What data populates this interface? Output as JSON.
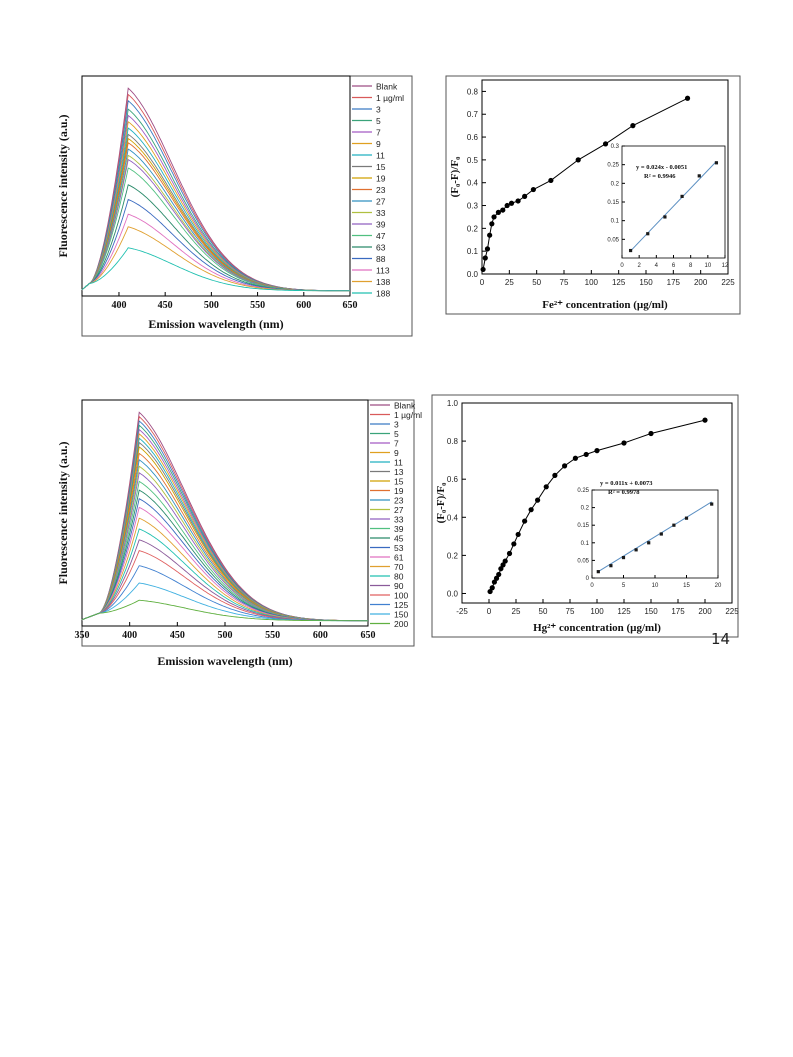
{
  "page_number": "14",
  "colors": {
    "axis": "#000000",
    "frame": "#555555",
    "fit": "#5b8fc2"
  },
  "chart_data": [
    {
      "type": "line",
      "title": "",
      "xlabel": "Emission wavelength (nm)",
      "ylabel": "Fluorescence intensity (a.u.)",
      "xlim": [
        360,
        650
      ],
      "x_ticks": [
        "400",
        "450",
        "500",
        "550",
        "600",
        "650"
      ],
      "legend_position": "right",
      "peak_x": 410,
      "series": [
        {
          "name": "Blank",
          "color": "#9e4d85",
          "peak": 0.98
        },
        {
          "name": "1 µg/ml",
          "color": "#d95a5a",
          "peak": 0.95
        },
        {
          "name": "3",
          "color": "#3a7ac4",
          "peak": 0.92
        },
        {
          "name": "5",
          "color": "#3aa37a",
          "peak": 0.88
        },
        {
          "name": "7",
          "color": "#a35ac4",
          "peak": 0.85
        },
        {
          "name": "9",
          "color": "#e0a020",
          "peak": 0.82
        },
        {
          "name": "11",
          "color": "#20b0c0",
          "peak": 0.79
        },
        {
          "name": "15",
          "color": "#7a7a7a",
          "peak": 0.76
        },
        {
          "name": "19",
          "color": "#d0a000",
          "peak": 0.74
        },
        {
          "name": "23",
          "color": "#e07030",
          "peak": 0.72
        },
        {
          "name": "27",
          "color": "#3090c0",
          "peak": 0.69
        },
        {
          "name": "33",
          "color": "#b0c040",
          "peak": 0.66
        },
        {
          "name": "39",
          "color": "#9060c0",
          "peak": 0.64
        },
        {
          "name": "47",
          "color": "#50c080",
          "peak": 0.6
        },
        {
          "name": "63",
          "color": "#2a8a6a",
          "peak": 0.52
        },
        {
          "name": "88",
          "color": "#3a6ac0",
          "peak": 0.45
        },
        {
          "name": "113",
          "color": "#e070c0",
          "peak": 0.38
        },
        {
          "name": "138",
          "color": "#e0a030",
          "peak": 0.32
        },
        {
          "name": "188",
          "color": "#20c0b0",
          "peak": 0.22
        }
      ]
    },
    {
      "type": "scatter",
      "title": "",
      "xlabel": "Fe²⁺ concentration (µg/ml)",
      "ylabel": "(F₀-F)/F₀",
      "xlim": [
        0,
        225
      ],
      "ylim": [
        0,
        0.85
      ],
      "x_ticks": [
        "0",
        "25",
        "50",
        "75",
        "100",
        "125",
        "150",
        "175",
        "200",
        "225"
      ],
      "y_ticks": [
        "0.0",
        "0.1",
        "0.2",
        "0.3",
        "0.4",
        "0.5",
        "0.6",
        "0.7",
        "0.8"
      ],
      "x": [
        1,
        3,
        5,
        7,
        9,
        11,
        15,
        19,
        23,
        27,
        33,
        39,
        47,
        63,
        88,
        113,
        138,
        188
      ],
      "y": [
        0.02,
        0.07,
        0.11,
        0.17,
        0.22,
        0.25,
        0.27,
        0.28,
        0.3,
        0.31,
        0.32,
        0.34,
        0.37,
        0.41,
        0.5,
        0.57,
        0.65,
        0.77
      ],
      "inset": {
        "x": [
          1,
          3,
          5,
          7,
          9,
          11
        ],
        "y": [
          0.02,
          0.065,
          0.11,
          0.165,
          0.22,
          0.255
        ],
        "xlim": [
          0,
          12
        ],
        "ylim": [
          0,
          0.3
        ],
        "x_ticks": [
          "0",
          "2",
          "4",
          "6",
          "8",
          "10",
          "12"
        ],
        "y_ticks": [
          "0.05",
          "0.1",
          "0.15",
          "0.2",
          "0.25",
          "0.3"
        ],
        "equation": "y = 0.024x - 0.0051",
        "r2": "R² = 0.9946",
        "fit": {
          "slope": 0.024,
          "intercept": -0.0051
        }
      }
    },
    {
      "type": "line",
      "title": "",
      "xlabel": "Emission wavelength (nm)",
      "ylabel": "Fluorescence intensity (a.u.)",
      "xlim": [
        350,
        650
      ],
      "x_ticks": [
        "350",
        "400",
        "450",
        "500",
        "550",
        "600",
        "650"
      ],
      "legend_position": "right",
      "peak_x": 410,
      "series": [
        {
          "name": "Blank",
          "color": "#9e4d85",
          "peak": 0.98
        },
        {
          "name": "1 µg/ml",
          "color": "#d95a5a",
          "peak": 0.96
        },
        {
          "name": "3",
          "color": "#3a7ac4",
          "peak": 0.94
        },
        {
          "name": "5",
          "color": "#3aa37a",
          "peak": 0.92
        },
        {
          "name": "7",
          "color": "#a35ac4",
          "peak": 0.9
        },
        {
          "name": "9",
          "color": "#e0a020",
          "peak": 0.88
        },
        {
          "name": "11",
          "color": "#20b0c0",
          "peak": 0.86
        },
        {
          "name": "13",
          "color": "#7a7a7a",
          "peak": 0.84
        },
        {
          "name": "15",
          "color": "#d0a000",
          "peak": 0.82
        },
        {
          "name": "19",
          "color": "#e07030",
          "peak": 0.79
        },
        {
          "name": "23",
          "color": "#3090c0",
          "peak": 0.76
        },
        {
          "name": "27",
          "color": "#b0c040",
          "peak": 0.73
        },
        {
          "name": "33",
          "color": "#9060c0",
          "peak": 0.7
        },
        {
          "name": "39",
          "color": "#50c080",
          "peak": 0.66
        },
        {
          "name": "45",
          "color": "#2a8a6a",
          "peak": 0.62
        },
        {
          "name": "53",
          "color": "#3a6ac0",
          "peak": 0.58
        },
        {
          "name": "61",
          "color": "#e070c0",
          "peak": 0.54
        },
        {
          "name": "70",
          "color": "#e0a030",
          "peak": 0.49
        },
        {
          "name": "80",
          "color": "#20c0b0",
          "peak": 0.44
        },
        {
          "name": "90",
          "color": "#8a5a9a",
          "peak": 0.39
        },
        {
          "name": "100",
          "color": "#e06060",
          "peak": 0.34
        },
        {
          "name": "125",
          "color": "#4080d0",
          "peak": 0.27
        },
        {
          "name": "150",
          "color": "#40b0e0",
          "peak": 0.19
        },
        {
          "name": "200",
          "color": "#60b040",
          "peak": 0.11
        }
      ]
    },
    {
      "type": "scatter",
      "title": "",
      "xlabel": "Hg²⁺ concentration (µg/ml)",
      "ylabel": "(F₀-F)/F₀",
      "xlim": [
        -25,
        225
      ],
      "ylim": [
        -0.05,
        1.0
      ],
      "x_ticks": [
        "-25",
        "0",
        "25",
        "50",
        "75",
        "100",
        "125",
        "150",
        "175",
        "200",
        "225"
      ],
      "y_ticks": [
        "0.0",
        "0.2",
        "0.4",
        "0.6",
        "0.8",
        "1.0"
      ],
      "x": [
        1,
        3,
        5,
        7,
        9,
        11,
        13,
        15,
        19,
        23,
        27,
        33,
        39,
        45,
        53,
        61,
        70,
        80,
        90,
        100,
        125,
        150,
        200
      ],
      "y": [
        0.01,
        0.03,
        0.06,
        0.08,
        0.1,
        0.13,
        0.15,
        0.17,
        0.21,
        0.26,
        0.31,
        0.38,
        0.44,
        0.49,
        0.56,
        0.62,
        0.67,
        0.71,
        0.73,
        0.75,
        0.79,
        0.84,
        0.91
      ],
      "inset": {
        "x": [
          1,
          3,
          5,
          7,
          9,
          11,
          13,
          15,
          19
        ],
        "y": [
          0.018,
          0.035,
          0.058,
          0.08,
          0.1,
          0.125,
          0.15,
          0.17,
          0.21
        ],
        "xlim": [
          0,
          20
        ],
        "ylim": [
          0,
          0.25
        ],
        "x_ticks": [
          "0",
          "5",
          "10",
          "15",
          "20"
        ],
        "y_ticks": [
          "0",
          "0.05",
          "0.1",
          "0.15",
          "0.2",
          "0.25"
        ],
        "equation": "y = 0.011x + 0.0073",
        "r2": "R² = 0.9978",
        "fit": {
          "slope": 0.011,
          "intercept": 0.0073
        }
      }
    }
  ]
}
